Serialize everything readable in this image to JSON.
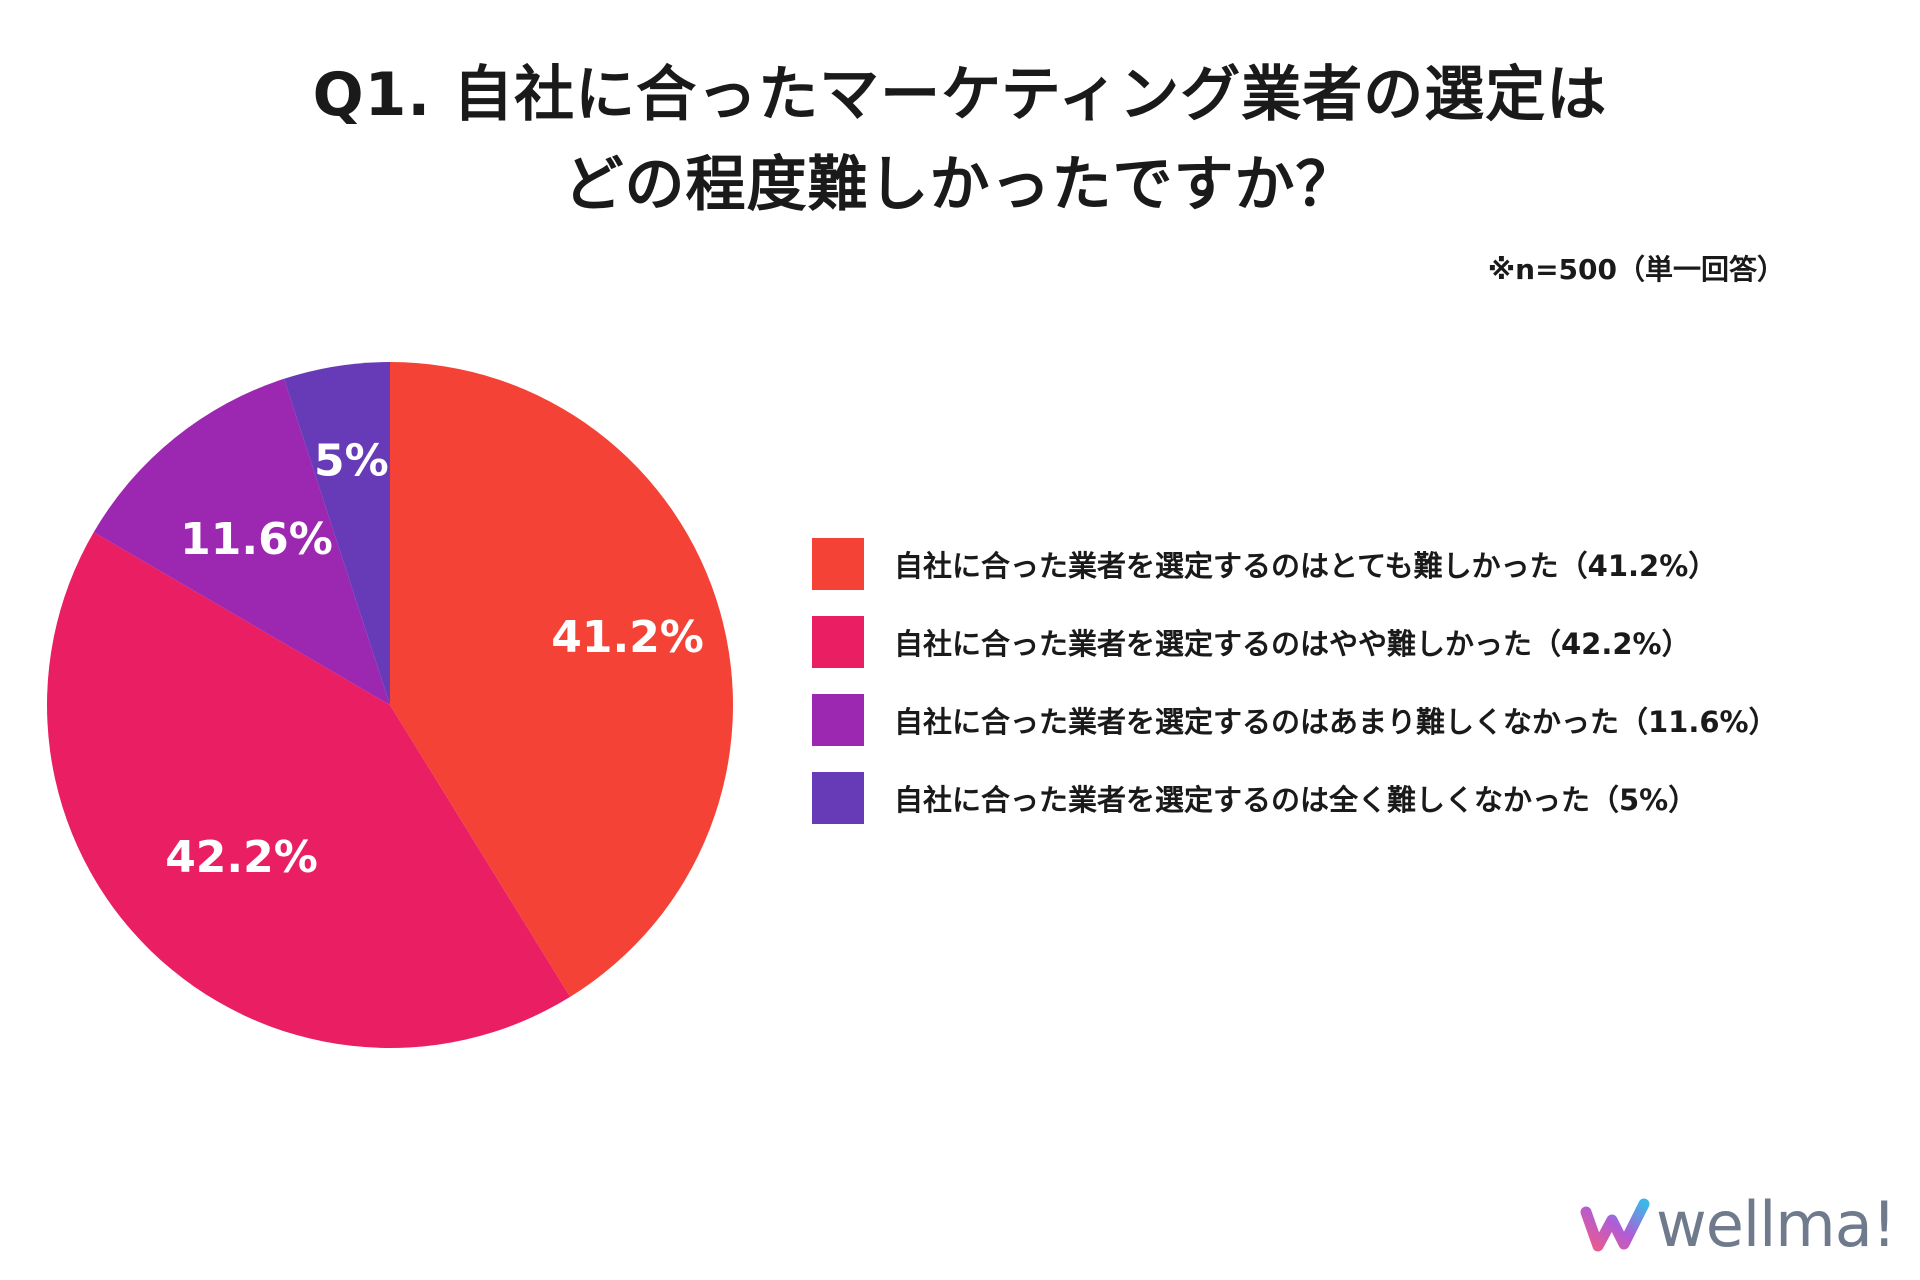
{
  "title": {
    "line1": "Q1. 自社に合ったマーケティング業者の選定は",
    "line2": "どの程度難しかったですか？"
  },
  "note": "※n=500（単一回答）",
  "colors": {
    "very_difficult": "#f44336",
    "somewhat_difficult": "#e91e63",
    "not_very_difficult": "#9c27b0",
    "not_at_all_difficult": "#673ab7",
    "logo_text": "#6f7b8d"
  },
  "chart_data": {
    "type": "pie",
    "title": "Q1. 自社に合ったマーケティング業者の選定は どの程度難しかったですか？",
    "legend_position": "right",
    "slices": [
      {
        "label": "自社に合った業者を選定するのはとても難しかった（41.2%）",
        "value": 41.2,
        "data_label": "41.2%",
        "color": "#f44336"
      },
      {
        "label": "自社に合った業者を選定するのはやや難しかった（42.2%）",
        "value": 42.2,
        "data_label": "42.2%",
        "color": "#e91e63"
      },
      {
        "label": "自社に合った業者を選定するのはあまり難しくなかった（11.6%）",
        "value": 11.6,
        "data_label": "11.6%",
        "color": "#9c27b0"
      },
      {
        "label": "自社に合った業者を選定するのは全く難しくなかった（5%）",
        "value": 5,
        "data_label": "5%",
        "color": "#673ab7"
      }
    ]
  },
  "logo": {
    "text": "wellma!",
    "icon": "wellma-logo-icon"
  }
}
